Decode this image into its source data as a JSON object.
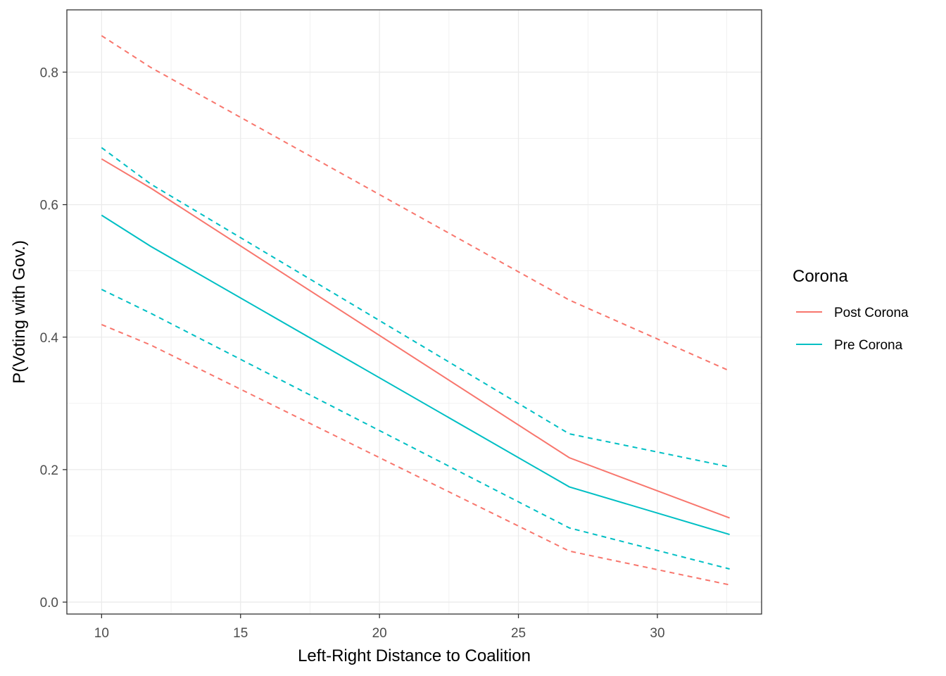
{
  "chart_data": {
    "type": "line",
    "title": "",
    "xlabel": "Left-Right Distance to Coalition",
    "ylabel": "P(Voting with Gov.)",
    "xlim": [
      8.75,
      33.75
    ],
    "ylim": [
      -0.018,
      0.894
    ],
    "x_ticks": [
      10,
      15,
      20,
      25,
      30
    ],
    "x_tick_labels": [
      "10",
      "15",
      "20",
      "25",
      "30"
    ],
    "y_ticks": [
      0.0,
      0.2,
      0.4,
      0.6,
      0.8
    ],
    "y_tick_labels": [
      "0.0",
      "0.2",
      "0.4",
      "0.6",
      "0.8"
    ],
    "grid": true,
    "legend": {
      "title": "Corona",
      "position": "right",
      "entries": [
        "Post Corona",
        "Pre Corona"
      ]
    },
    "x": [
      10,
      11.77,
      26.83,
      32.6
    ],
    "series": [
      {
        "name": "Post Corona",
        "color": "#F8766D",
        "estimate": [
          0.669,
          0.625,
          0.218,
          0.127
        ],
        "upper": [
          0.855,
          0.807,
          0.456,
          0.349
        ],
        "lower": [
          0.419,
          0.388,
          0.077,
          0.026
        ]
      },
      {
        "name": "Pre Corona",
        "color": "#00BFC4",
        "estimate": [
          0.584,
          0.537,
          0.174,
          0.102
        ],
        "upper": [
          0.686,
          0.631,
          0.254,
          0.204
        ],
        "lower": [
          0.472,
          0.436,
          0.112,
          0.05
        ]
      }
    ]
  }
}
